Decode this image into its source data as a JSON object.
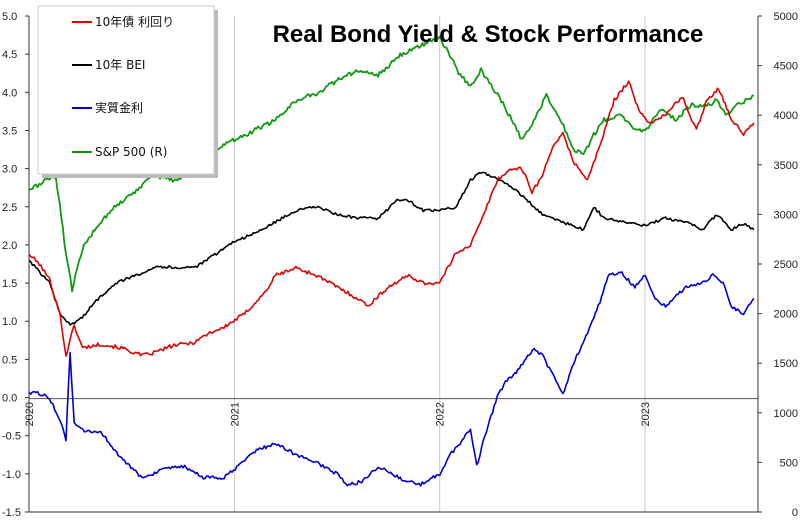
{
  "chart_data": {
    "type": "line",
    "title": "Real Bond Yield & Stock Performance",
    "x_ticks": [
      "2020",
      "2021",
      "2022",
      "2023"
    ],
    "x_range": [
      2020.0,
      2023.55
    ],
    "y_left": {
      "range": [
        -1.5,
        5.0
      ],
      "ticks": [
        "-1.5",
        "-1.0",
        "-0.5",
        "0.0",
        "0.5",
        "1.0",
        "1.5",
        "2.0",
        "2.5",
        "3.0",
        "3.5",
        "4.0",
        "4.5",
        "5.0"
      ],
      "negative_tick_color": "#cc0000"
    },
    "y_right": {
      "range": [
        0,
        5000
      ],
      "ticks": [
        "0",
        "500",
        "1000",
        "1500",
        "2000",
        "2500",
        "3000",
        "3500",
        "4000",
        "4500",
        "5000"
      ]
    },
    "grid": "vertical",
    "legend_position": "top-left",
    "series": [
      {
        "name": "10年債 利回り",
        "color": "#e00000",
        "axis": "left",
        "points": [
          [
            2020.0,
            1.88
          ],
          [
            2020.05,
            1.75
          ],
          [
            2020.1,
            1.55
          ],
          [
            2020.15,
            1.1
          ],
          [
            2020.18,
            0.55
          ],
          [
            2020.22,
            0.95
          ],
          [
            2020.26,
            0.65
          ],
          [
            2020.35,
            0.7
          ],
          [
            2020.45,
            0.65
          ],
          [
            2020.55,
            0.55
          ],
          [
            2020.6,
            0.58
          ],
          [
            2020.7,
            0.68
          ],
          [
            2020.8,
            0.72
          ],
          [
            2020.88,
            0.85
          ],
          [
            2020.95,
            0.92
          ],
          [
            2021.05,
            1.1
          ],
          [
            2021.15,
            1.38
          ],
          [
            2021.2,
            1.6
          ],
          [
            2021.3,
            1.7
          ],
          [
            2021.4,
            1.6
          ],
          [
            2021.5,
            1.45
          ],
          [
            2021.6,
            1.3
          ],
          [
            2021.65,
            1.2
          ],
          [
            2021.75,
            1.45
          ],
          [
            2021.85,
            1.6
          ],
          [
            2021.92,
            1.5
          ],
          [
            2022.0,
            1.5
          ],
          [
            2022.08,
            1.9
          ],
          [
            2022.15,
            2.0
          ],
          [
            2022.2,
            2.3
          ],
          [
            2022.28,
            2.85
          ],
          [
            2022.35,
            3.0
          ],
          [
            2022.4,
            3.0
          ],
          [
            2022.45,
            2.7
          ],
          [
            2022.5,
            2.9
          ],
          [
            2022.55,
            3.3
          ],
          [
            2022.6,
            3.45
          ],
          [
            2022.65,
            3.1
          ],
          [
            2022.72,
            2.85
          ],
          [
            2022.78,
            3.3
          ],
          [
            2022.85,
            3.9
          ],
          [
            2022.92,
            4.15
          ],
          [
            2022.97,
            3.75
          ],
          [
            2023.02,
            3.6
          ],
          [
            2023.1,
            3.7
          ],
          [
            2023.18,
            3.95
          ],
          [
            2023.25,
            3.5
          ],
          [
            2023.3,
            3.9
          ],
          [
            2023.36,
            4.05
          ],
          [
            2023.42,
            3.65
          ],
          [
            2023.48,
            3.45
          ],
          [
            2023.53,
            3.6
          ]
        ]
      },
      {
        "name": "10年 BEI",
        "color": "#000000",
        "axis": "left",
        "points": [
          [
            2020.0,
            1.8
          ],
          [
            2020.05,
            1.65
          ],
          [
            2020.1,
            1.5
          ],
          [
            2020.15,
            1.1
          ],
          [
            2020.2,
            0.95
          ],
          [
            2020.26,
            1.05
          ],
          [
            2020.32,
            1.25
          ],
          [
            2020.42,
            1.5
          ],
          [
            2020.52,
            1.6
          ],
          [
            2020.62,
            1.72
          ],
          [
            2020.72,
            1.7
          ],
          [
            2020.82,
            1.72
          ],
          [
            2020.92,
            1.9
          ],
          [
            2021.0,
            2.05
          ],
          [
            2021.1,
            2.15
          ],
          [
            2021.2,
            2.3
          ],
          [
            2021.3,
            2.45
          ],
          [
            2021.4,
            2.5
          ],
          [
            2021.5,
            2.4
          ],
          [
            2021.6,
            2.35
          ],
          [
            2021.7,
            2.35
          ],
          [
            2021.8,
            2.6
          ],
          [
            2021.85,
            2.58
          ],
          [
            2021.92,
            2.45
          ],
          [
            2022.0,
            2.45
          ],
          [
            2022.08,
            2.5
          ],
          [
            2022.15,
            2.85
          ],
          [
            2022.2,
            2.95
          ],
          [
            2022.3,
            2.85
          ],
          [
            2022.4,
            2.65
          ],
          [
            2022.5,
            2.4
          ],
          [
            2022.6,
            2.3
          ],
          [
            2022.7,
            2.2
          ],
          [
            2022.75,
            2.5
          ],
          [
            2022.8,
            2.35
          ],
          [
            2022.9,
            2.3
          ],
          [
            2023.0,
            2.25
          ],
          [
            2023.1,
            2.35
          ],
          [
            2023.2,
            2.3
          ],
          [
            2023.28,
            2.2
          ],
          [
            2023.35,
            2.4
          ],
          [
            2023.42,
            2.2
          ],
          [
            2023.48,
            2.28
          ],
          [
            2023.53,
            2.2
          ]
        ]
      },
      {
        "name": "実質金利",
        "color": "#0000d0",
        "axis": "left",
        "points": [
          [
            2020.0,
            0.07
          ],
          [
            2020.05,
            0.05
          ],
          [
            2020.1,
            0.0
          ],
          [
            2020.15,
            -0.3
          ],
          [
            2020.18,
            -0.55
          ],
          [
            2020.2,
            0.6
          ],
          [
            2020.22,
            -0.35
          ],
          [
            2020.27,
            -0.45
          ],
          [
            2020.35,
            -0.45
          ],
          [
            2020.45,
            -0.8
          ],
          [
            2020.55,
            -1.05
          ],
          [
            2020.65,
            -0.95
          ],
          [
            2020.75,
            -0.9
          ],
          [
            2020.85,
            -1.05
          ],
          [
            2020.95,
            -1.05
          ],
          [
            2021.02,
            -0.9
          ],
          [
            2021.1,
            -0.7
          ],
          [
            2021.2,
            -0.6
          ],
          [
            2021.3,
            -0.75
          ],
          [
            2021.4,
            -0.85
          ],
          [
            2021.5,
            -1.0
          ],
          [
            2021.55,
            -1.15
          ],
          [
            2021.62,
            -1.1
          ],
          [
            2021.7,
            -0.9
          ],
          [
            2021.8,
            -1.05
          ],
          [
            2021.9,
            -1.15
          ],
          [
            2022.0,
            -1.0
          ],
          [
            2022.05,
            -0.75
          ],
          [
            2022.1,
            -0.6
          ],
          [
            2022.15,
            -0.4
          ],
          [
            2022.18,
            -0.9
          ],
          [
            2022.22,
            -0.5
          ],
          [
            2022.28,
            0.0
          ],
          [
            2022.32,
            0.2
          ],
          [
            2022.38,
            0.35
          ],
          [
            2022.42,
            0.5
          ],
          [
            2022.46,
            0.65
          ],
          [
            2022.5,
            0.55
          ],
          [
            2022.55,
            0.3
          ],
          [
            2022.6,
            0.05
          ],
          [
            2022.66,
            0.5
          ],
          [
            2022.72,
            0.85
          ],
          [
            2022.78,
            1.25
          ],
          [
            2022.82,
            1.6
          ],
          [
            2022.88,
            1.65
          ],
          [
            2022.95,
            1.45
          ],
          [
            2023.0,
            1.6
          ],
          [
            2023.05,
            1.3
          ],
          [
            2023.1,
            1.2
          ],
          [
            2023.2,
            1.45
          ],
          [
            2023.28,
            1.5
          ],
          [
            2023.33,
            1.6
          ],
          [
            2023.38,
            1.5
          ],
          [
            2023.42,
            1.2
          ],
          [
            2023.48,
            1.1
          ],
          [
            2023.53,
            1.3
          ]
        ]
      },
      {
        "name": "S&P 500 (R)",
        "color": "#119911",
        "axis": "right",
        "points": [
          [
            2020.0,
            3250
          ],
          [
            2020.05,
            3300
          ],
          [
            2020.1,
            3370
          ],
          [
            2020.13,
            3380
          ],
          [
            2020.15,
            3100
          ],
          [
            2020.18,
            2600
          ],
          [
            2020.21,
            2240
          ],
          [
            2020.26,
            2650
          ],
          [
            2020.32,
            2850
          ],
          [
            2020.4,
            3050
          ],
          [
            2020.5,
            3200
          ],
          [
            2020.6,
            3400
          ],
          [
            2020.7,
            3350
          ],
          [
            2020.8,
            3400
          ],
          [
            2020.9,
            3650
          ],
          [
            2021.0,
            3750
          ],
          [
            2021.1,
            3850
          ],
          [
            2021.2,
            3950
          ],
          [
            2021.3,
            4150
          ],
          [
            2021.4,
            4220
          ],
          [
            2021.5,
            4350
          ],
          [
            2021.6,
            4450
          ],
          [
            2021.7,
            4400
          ],
          [
            2021.8,
            4600
          ],
          [
            2021.9,
            4700
          ],
          [
            2022.0,
            4780
          ],
          [
            2022.05,
            4600
          ],
          [
            2022.1,
            4400
          ],
          [
            2022.15,
            4300
          ],
          [
            2022.2,
            4450
          ],
          [
            2022.25,
            4300
          ],
          [
            2022.3,
            4150
          ],
          [
            2022.35,
            3950
          ],
          [
            2022.4,
            3750
          ],
          [
            2022.45,
            3900
          ],
          [
            2022.52,
            4200
          ],
          [
            2022.58,
            4000
          ],
          [
            2022.65,
            3650
          ],
          [
            2022.7,
            3600
          ],
          [
            2022.75,
            3800
          ],
          [
            2022.8,
            3950
          ],
          [
            2022.88,
            4000
          ],
          [
            2022.95,
            3850
          ],
          [
            2023.0,
            3850
          ],
          [
            2023.08,
            4050
          ],
          [
            2023.15,
            3950
          ],
          [
            2023.22,
            4100
          ],
          [
            2023.3,
            4100
          ],
          [
            2023.35,
            4150
          ],
          [
            2023.4,
            4000
          ],
          [
            2023.45,
            4100
          ],
          [
            2023.53,
            4200
          ]
        ]
      }
    ]
  }
}
